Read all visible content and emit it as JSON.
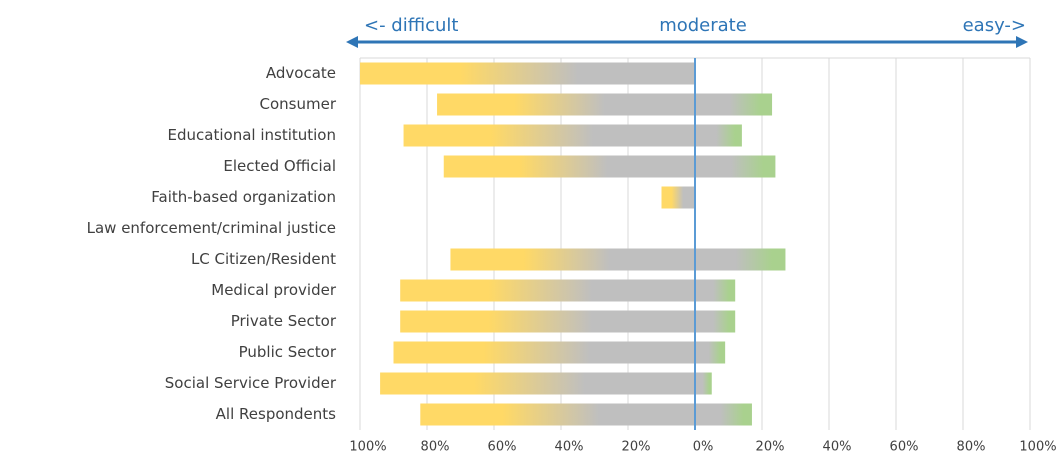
{
  "chart_data": {
    "type": "diverging-bar",
    "annotations": [
      "<- difficult",
      "moderate",
      "easy->"
    ],
    "categories": [
      "Advocate",
      "Consumer",
      "Educational institution",
      "Elected Official",
      "Faith-based organization",
      "Law enforcement/criminal justice",
      "LC Citizen/Resident",
      "Medical provider",
      "Private Sector",
      "Public Sector",
      "Social Service Provider",
      "All Respondents"
    ],
    "series": [
      {
        "color": "#ffd966",
        "values": [
          -100,
          -77,
          -87,
          -75,
          -10,
          0,
          -73,
          -88,
          -88,
          -90,
          -94,
          -82
        ]
      },
      {
        "color": "#a9d18e",
        "values": [
          0,
          23,
          14,
          24,
          0,
          0,
          27,
          12,
          12,
          9,
          5,
          17
        ]
      }
    ],
    "xlim": [
      -100,
      100
    ],
    "xticks": [
      {
        "value": -100,
        "label": "100%"
      },
      {
        "value": -80,
        "label": "80%"
      },
      {
        "value": -60,
        "label": "60%"
      },
      {
        "value": -40,
        "label": "40%"
      },
      {
        "value": -20,
        "label": "20%"
      },
      {
        "value": 0,
        "label": "0%"
      },
      {
        "value": 20,
        "label": "20%"
      },
      {
        "value": 40,
        "label": "40%"
      },
      {
        "value": 60,
        "label": "60%"
      },
      {
        "value": 80,
        "label": "80%"
      },
      {
        "value": 100,
        "label": "100%"
      }
    ],
    "grid": true
  }
}
